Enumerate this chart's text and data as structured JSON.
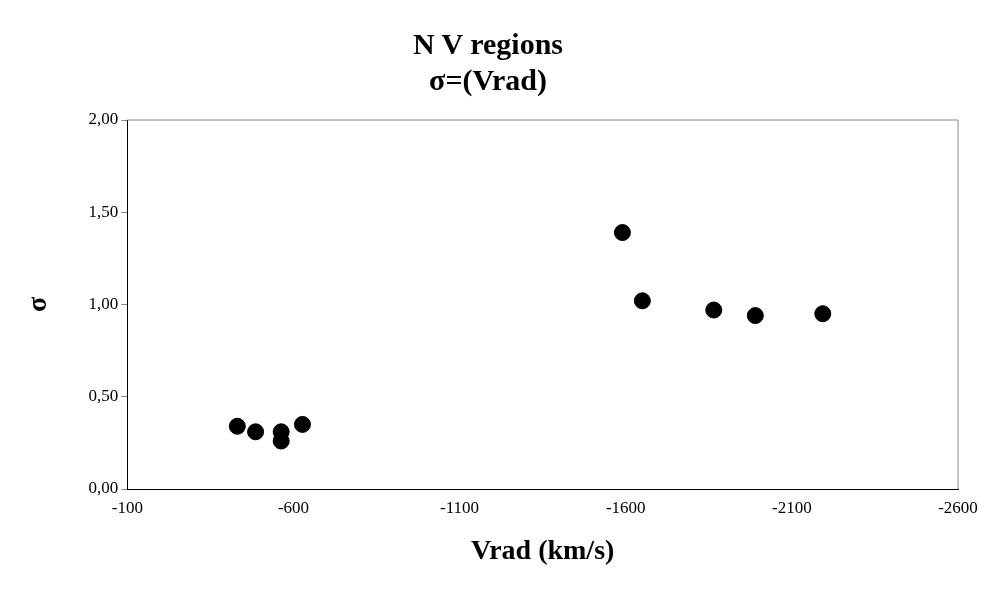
{
  "chart_data": {
    "type": "scatter",
    "title": "N V regions",
    "subtitle": "σ=(Vrad)",
    "xlabel": "Vrad (km/s)",
    "ylabel": "σ",
    "x": [
      -431,
      -486,
      -563,
      -563,
      -627,
      -1590,
      -1650,
      -1865,
      -1990,
      -2193
    ],
    "series": [
      {
        "color": "#000000",
        "values": [
          0.34,
          0.31,
          0.31,
          0.26,
          0.35,
          1.39,
          1.02,
          0.97,
          0.94,
          0.95
        ]
      }
    ],
    "xlim": [
      -100,
      -2600
    ],
    "xticks": [
      -100,
      -600,
      -1100,
      -1600,
      -2100,
      -2600
    ],
    "ylim": [
      0,
      2
    ],
    "yticks": [
      {
        "value": 0,
        "label": "0,00"
      },
      {
        "value": 0.5,
        "label": "0,50"
      },
      {
        "value": 1,
        "label": "1,00"
      },
      {
        "value": 1.5,
        "label": "1,50"
      },
      {
        "value": 2,
        "label": "2,00"
      }
    ],
    "marker": "circle",
    "grid": false,
    "legend": false
  }
}
